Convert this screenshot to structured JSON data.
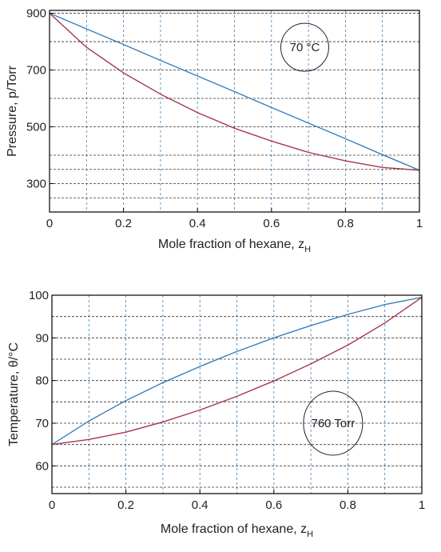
{
  "colors": {
    "vapour": "#3b7fb8",
    "liquid": "#a8364e",
    "grid": "#333333",
    "axis": "#000000"
  },
  "chart_data": [
    {
      "type": "line",
      "xlabel": "Mole fraction of hexane, z",
      "xlabel_sub": "H",
      "ylabel": "Pressure, p/Torr",
      "xlim": [
        0,
        1
      ],
      "ylim": [
        200,
        910
      ],
      "xticks": [
        0,
        0.2,
        0.4,
        0.6,
        0.8,
        1
      ],
      "xtick_labels": [
        "0",
        "0.2",
        "0.4",
        "0.6",
        "0.8",
        "1"
      ],
      "yticks": [
        300,
        500,
        700,
        900
      ],
      "ytick_labels": [
        "300",
        "500",
        "700",
        "900"
      ],
      "grid": true,
      "grid_x": [
        0.1,
        0.2,
        0.3,
        0.4,
        0.5,
        0.6,
        0.7,
        0.8,
        0.9
      ],
      "grid_y": [
        250,
        300,
        350,
        400,
        500,
        600,
        700,
        800,
        900
      ],
      "annotation": "70 °C",
      "annotation_at": [
        0.69,
        780
      ],
      "series": [
        {
          "role": "upper",
          "color": "#3b7fb8",
          "x": [
            0,
            0.1,
            0.2,
            0.3,
            0.4,
            0.5,
            0.6,
            0.7,
            0.8,
            0.9,
            1
          ],
          "y": [
            900,
            845,
            790,
            734,
            679,
            624,
            568,
            513,
            458,
            402,
            347
          ]
        },
        {
          "role": "lower",
          "color": "#a8364e",
          "x": [
            0,
            0.1,
            0.2,
            0.3,
            0.4,
            0.5,
            0.6,
            0.7,
            0.8,
            0.9,
            1
          ],
          "y": [
            900,
            780,
            690,
            615,
            550,
            495,
            450,
            410,
            380,
            357,
            347
          ]
        }
      ]
    },
    {
      "type": "line",
      "xlabel": "Mole fraction of hexane, z",
      "xlabel_sub": "H",
      "ylabel": "Temperature, θ/°C",
      "xlim": [
        0,
        1
      ],
      "ylim": [
        53.5,
        100
      ],
      "xticks": [
        0,
        0.2,
        0.4,
        0.6,
        0.8,
        1
      ],
      "xtick_labels": [
        "0",
        "0.2",
        "0.4",
        "0.6",
        "0.8",
        "1"
      ],
      "yticks": [
        60,
        70,
        80,
        90,
        100
      ],
      "ytick_labels": [
        "60",
        "70",
        "80",
        "90",
        "100"
      ],
      "grid": true,
      "grid_x": [
        0.1,
        0.2,
        0.3,
        0.4,
        0.5,
        0.6,
        0.7,
        0.8,
        0.9
      ],
      "grid_y": [
        55,
        60,
        65,
        70,
        75,
        80,
        85,
        90,
        95,
        100
      ],
      "annotation": "760 Torr",
      "annotation_at": [
        0.76,
        70
      ],
      "series": [
        {
          "role": "upper",
          "color": "#3b7fb8",
          "x": [
            0,
            0.1,
            0.2,
            0.3,
            0.4,
            0.5,
            0.6,
            0.7,
            0.8,
            0.9,
            1
          ],
          "y": [
            65,
            70.5,
            75.3,
            79.5,
            83.3,
            86.8,
            90.0,
            92.9,
            95.5,
            97.8,
            99.5
          ]
        },
        {
          "role": "lower",
          "color": "#a8364e",
          "x": [
            0,
            0.1,
            0.2,
            0.3,
            0.4,
            0.5,
            0.6,
            0.7,
            0.8,
            0.9,
            1
          ],
          "y": [
            65,
            66.2,
            67.9,
            70.3,
            73.1,
            76.3,
            79.9,
            83.9,
            88.3,
            93.5,
            99.5
          ]
        }
      ]
    }
  ]
}
